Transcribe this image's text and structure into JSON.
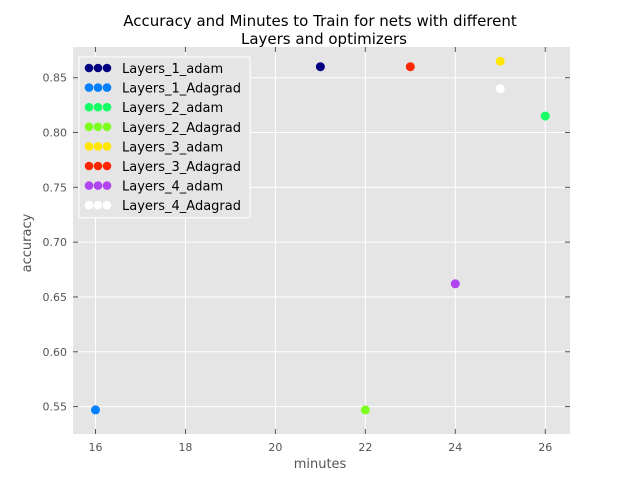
{
  "chart_data": {
    "type": "scatter",
    "title_line1": "Accuracy and Minutes to Train for nets with different",
    "title_line2": "Layers and optimizers",
    "xlabel": "minutes",
    "ylabel": "accuracy",
    "xlim": [
      15.5,
      26.55
    ],
    "ylim": [
      0.525,
      0.878
    ],
    "xticks": [
      16,
      18,
      20,
      22,
      24,
      26
    ],
    "yticks": [
      0.55,
      0.6,
      0.65,
      0.7,
      0.75,
      0.8,
      0.85
    ],
    "ytick_labels": [
      "0.55",
      "0.60",
      "0.65",
      "0.70",
      "0.75",
      "0.80",
      "0.85"
    ],
    "grid": true,
    "legend_position": "top-left",
    "background_color": "#e5e5e5",
    "series": [
      {
        "name": "Layers_1_adam",
        "color": "#000080",
        "x": [
          21
        ],
        "y": [
          0.86
        ]
      },
      {
        "name": "Layers_1_Adagrad",
        "color": "#0080ff",
        "x": [
          16
        ],
        "y": [
          0.547
        ]
      },
      {
        "name": "Layers_2_adam",
        "color": "#15ff65",
        "x": [
          26
        ],
        "y": [
          0.815
        ]
      },
      {
        "name": "Layers_2_Adagrad",
        "color": "#7dff1f",
        "x": [
          22
        ],
        "y": [
          0.547
        ]
      },
      {
        "name": "Layers_3_adam",
        "color": "#ffe600",
        "x": [
          25
        ],
        "y": [
          0.865
        ]
      },
      {
        "name": "Layers_3_Adagrad",
        "color": "#ff2600",
        "x": [
          23
        ],
        "y": [
          0.86
        ]
      },
      {
        "name": "Layers_4_adam",
        "color": "#b044f0",
        "x": [
          24
        ],
        "y": [
          0.662
        ]
      },
      {
        "name": "Layers_4_Adagrad",
        "color": "#ffffff",
        "x": [
          25
        ],
        "y": [
          0.84
        ]
      }
    ]
  }
}
